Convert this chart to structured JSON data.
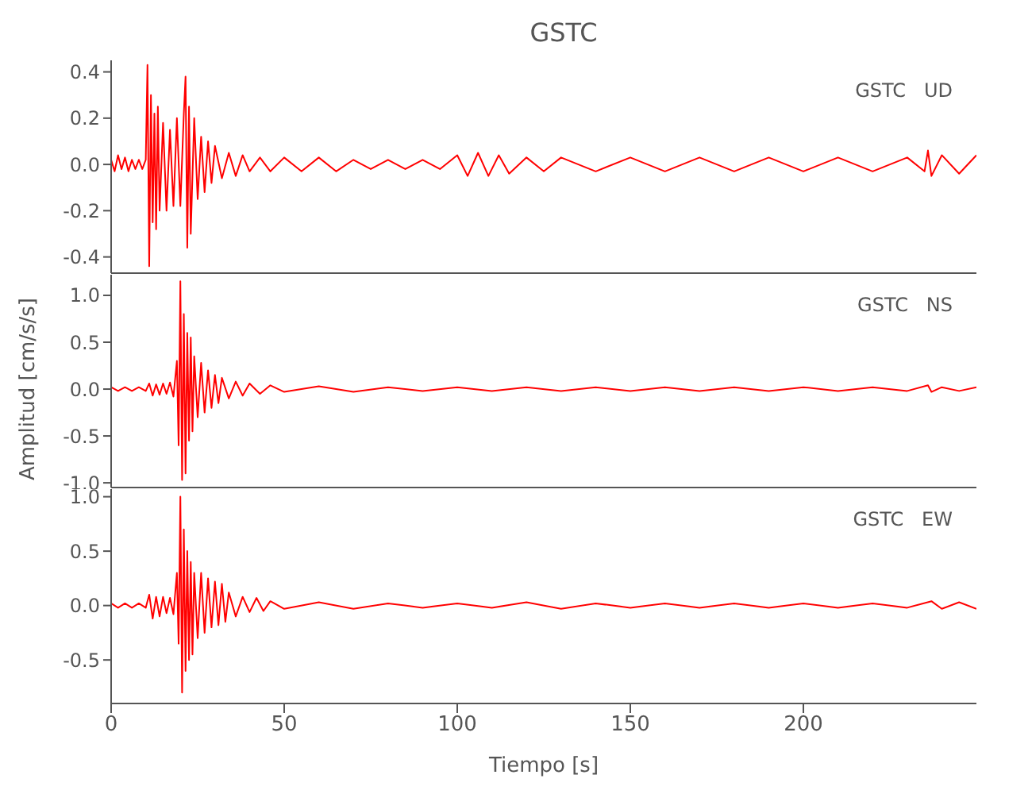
{
  "chart_data": [
    {
      "type": "line",
      "title": "GSTC",
      "annotations": [
        "GSTC   UD"
      ],
      "tick_labels": "y",
      "xlim": [
        0,
        250
      ],
      "xticks": [
        0,
        50,
        100,
        150,
        200
      ],
      "ylim": [
        -0.47,
        0.45
      ],
      "yticks": [
        -0.4,
        -0.2,
        {
          "value": 0,
          "label": "0.0"
        },
        0.2,
        0.4
      ],
      "marker": "none",
      "line_style": "solid",
      "series": [
        {
          "color": "#ff0000",
          "x": [
            0,
            1,
            2,
            3,
            4,
            5,
            6,
            7,
            8,
            9,
            10,
            10.5,
            11,
            11.5,
            12,
            12.5,
            13,
            13.5,
            14,
            15,
            16,
            17,
            18,
            19,
            20,
            21,
            21.5,
            22,
            22.5,
            23,
            24,
            25,
            26,
            27,
            28,
            29,
            30,
            32,
            34,
            36,
            38,
            40,
            43,
            46,
            50,
            55,
            60,
            65,
            70,
            75,
            80,
            85,
            90,
            95,
            100,
            103,
            106,
            109,
            112,
            115,
            120,
            125,
            130,
            140,
            150,
            160,
            170,
            180,
            190,
            200,
            210,
            220,
            230,
            235,
            236,
            237,
            240,
            245,
            250
          ],
          "values": [
            0.02,
            -0.03,
            0.04,
            -0.02,
            0.03,
            -0.03,
            0.02,
            -0.02,
            0.02,
            -0.02,
            0.02,
            0.43,
            -0.44,
            0.3,
            -0.25,
            0.22,
            -0.28,
            0.25,
            -0.2,
            0.18,
            -0.2,
            0.15,
            -0.18,
            0.2,
            -0.18,
            0.22,
            0.38,
            -0.36,
            0.25,
            -0.3,
            0.2,
            -0.15,
            0.12,
            -0.12,
            0.1,
            -0.08,
            0.08,
            -0.06,
            0.05,
            -0.05,
            0.04,
            -0.03,
            0.03,
            -0.03,
            0.03,
            -0.03,
            0.03,
            -0.03,
            0.02,
            -0.02,
            0.02,
            -0.02,
            0.02,
            -0.02,
            0.04,
            -0.05,
            0.05,
            -0.05,
            0.04,
            -0.04,
            0.03,
            -0.03,
            0.03,
            -0.03,
            0.03,
            -0.03,
            0.03,
            -0.03,
            0.03,
            -0.03,
            0.03,
            -0.03,
            0.03,
            -0.03,
            0.06,
            -0.05,
            0.04,
            -0.04,
            0.04
          ]
        }
      ]
    },
    {
      "type": "line",
      "ylabel": "Amplitud [cm/s/s]",
      "annotations": [
        "GSTC   NS"
      ],
      "tick_labels": "y",
      "xlim": [
        0,
        250
      ],
      "xticks": [
        0,
        50,
        100,
        150,
        200
      ],
      "ylim": [
        -1.05,
        1.22
      ],
      "yticks": [
        {
          "value": -1,
          "label": "-1.0"
        },
        -0.5,
        {
          "value": 0,
          "label": "0.0"
        },
        0.5,
        {
          "value": 1,
          "label": "1.0"
        }
      ],
      "marker": "none",
      "line_style": "solid",
      "series": [
        {
          "color": "#ff0000",
          "x": [
            0,
            2,
            4,
            6,
            8,
            10,
            11,
            12,
            13,
            14,
            15,
            16,
            17,
            18,
            19,
            19.5,
            20,
            20.5,
            21,
            21.5,
            22,
            22.5,
            23,
            23.5,
            24,
            25,
            26,
            27,
            28,
            29,
            30,
            31,
            32,
            34,
            36,
            38,
            40,
            43,
            46,
            50,
            60,
            70,
            80,
            90,
            100,
            110,
            120,
            130,
            140,
            150,
            160,
            170,
            180,
            190,
            200,
            210,
            220,
            230,
            236,
            237,
            240,
            245,
            250
          ],
          "values": [
            0.02,
            -0.02,
            0.02,
            -0.02,
            0.02,
            -0.02,
            0.06,
            -0.07,
            0.05,
            -0.06,
            0.06,
            -0.05,
            0.07,
            -0.08,
            0.3,
            -0.6,
            1.15,
            -0.97,
            0.8,
            -0.9,
            0.6,
            -0.55,
            0.55,
            -0.45,
            0.35,
            -0.3,
            0.28,
            -0.25,
            0.2,
            -0.2,
            0.15,
            -0.15,
            0.12,
            -0.1,
            0.08,
            -0.07,
            0.06,
            -0.05,
            0.04,
            -0.03,
            0.03,
            -0.03,
            0.02,
            -0.02,
            0.02,
            -0.02,
            0.02,
            -0.02,
            0.02,
            -0.02,
            0.02,
            -0.02,
            0.02,
            -0.02,
            0.02,
            -0.02,
            0.02,
            -0.02,
            0.04,
            -0.03,
            0.02,
            -0.02,
            0.02
          ]
        }
      ]
    },
    {
      "type": "line",
      "xlabel": "Tiempo [s]",
      "annotations": [
        "GSTC   EW"
      ],
      "xlim": [
        0,
        250
      ],
      "xticks": [
        0,
        50,
        100,
        150,
        200
      ],
      "ylim": [
        -0.9,
        1.07
      ],
      "yticks": [
        -0.5,
        {
          "value": 0,
          "label": "0.0"
        },
        0.5,
        {
          "value": 1,
          "label": "1.0"
        }
      ],
      "marker": "none",
      "line_style": "solid",
      "series": [
        {
          "color": "#ff0000",
          "x": [
            0,
            2,
            4,
            6,
            8,
            10,
            11,
            12,
            13,
            14,
            15,
            16,
            17,
            18,
            19,
            19.5,
            20,
            20.5,
            21,
            21.5,
            22,
            22.5,
            23,
            23.5,
            24,
            25,
            26,
            27,
            28,
            29,
            30,
            31,
            32,
            33,
            34,
            36,
            38,
            40,
            42,
            44,
            46,
            50,
            60,
            70,
            80,
            90,
            100,
            110,
            120,
            130,
            140,
            150,
            160,
            170,
            180,
            190,
            200,
            210,
            220,
            230,
            237,
            240,
            245,
            250
          ],
          "values": [
            0.02,
            -0.02,
            0.02,
            -0.02,
            0.02,
            -0.02,
            0.1,
            -0.12,
            0.08,
            -0.1,
            0.08,
            -0.07,
            0.07,
            -0.08,
            0.3,
            -0.35,
            1.0,
            -0.8,
            0.7,
            -0.6,
            0.5,
            -0.5,
            0.4,
            -0.45,
            0.3,
            -0.3,
            0.3,
            -0.25,
            0.25,
            -0.2,
            0.22,
            -0.18,
            0.2,
            -0.15,
            0.12,
            -0.1,
            0.08,
            -0.06,
            0.07,
            -0.05,
            0.04,
            -0.03,
            0.03,
            -0.03,
            0.02,
            -0.02,
            0.02,
            -0.02,
            0.03,
            -0.03,
            0.02,
            -0.02,
            0.02,
            -0.02,
            0.02,
            -0.02,
            0.02,
            -0.02,
            0.02,
            -0.02,
            0.04,
            -0.03,
            0.03,
            -0.03
          ]
        }
      ]
    }
  ]
}
